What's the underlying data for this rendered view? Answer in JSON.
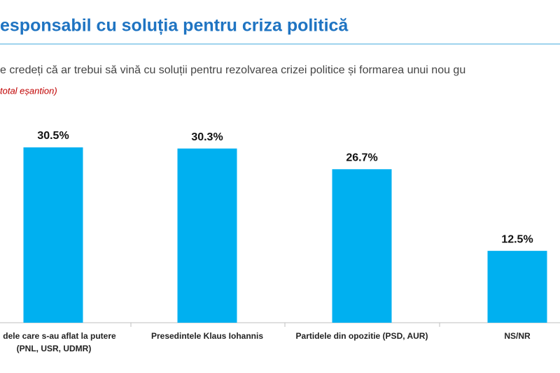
{
  "chart_data": {
    "type": "bar",
    "title": "esponsabil cu soluția pentru criza politică",
    "subtitle": "e credeți că ar trebui să vină cu soluții pentru rezolvarea crizei politice și formarea unui nou gu",
    "note": "total eșantion)",
    "categories": [
      [
        "dele care s-au aflat la putere",
        "(PNL, USR, UDMR)"
      ],
      [
        "Presedintele Klaus Iohannis"
      ],
      [
        "Partidele din opozitie (PSD, AUR)"
      ],
      [
        "NS/NR"
      ]
    ],
    "values": [
      30.5,
      30.3,
      26.7,
      12.5
    ],
    "value_labels": [
      "30.5%",
      "30.3%",
      "26.7%",
      "12.5%"
    ],
    "color": "#00b0f0"
  }
}
